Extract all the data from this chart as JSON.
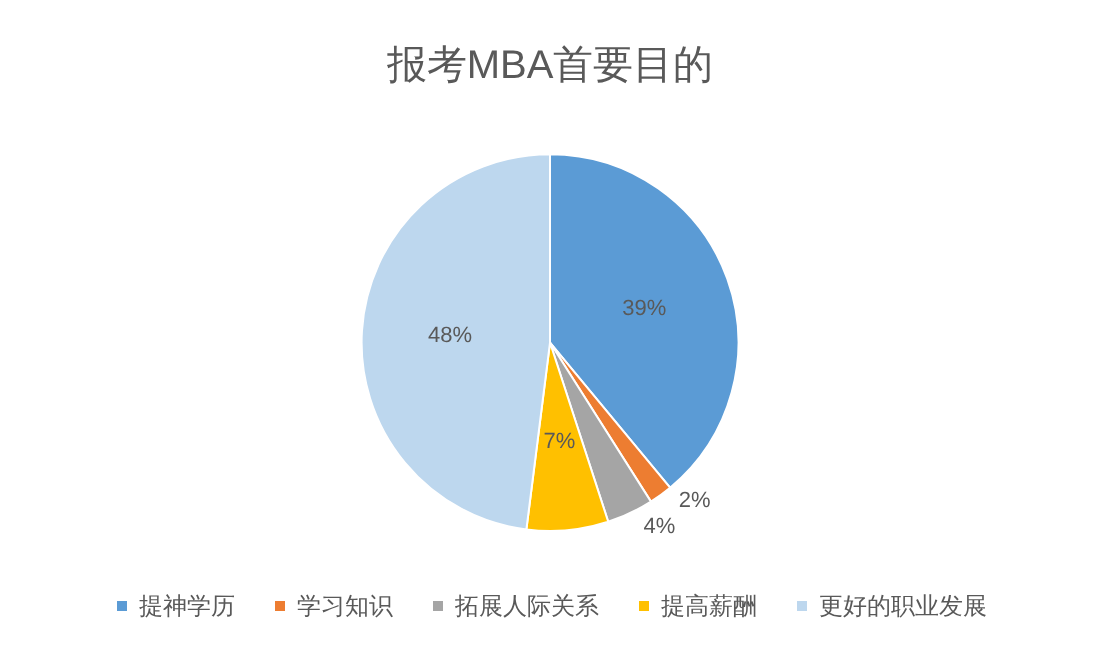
{
  "chart_data": {
    "type": "pie",
    "title": "报考MBA首要目的",
    "categories": [
      "提神学历",
      "学习知识",
      "拓展人际关系",
      "提高薪酬",
      "更好的职业发展"
    ],
    "values": [
      39,
      2,
      4,
      7,
      48
    ],
    "colors": [
      "#5b9bd5",
      "#ed7d31",
      "#a5a5a5",
      "#ffc000",
      "#bdd7ee"
    ],
    "value_labels": [
      "39%",
      "2%",
      "4%",
      "7%",
      "48%"
    ],
    "legend": "bottom"
  }
}
